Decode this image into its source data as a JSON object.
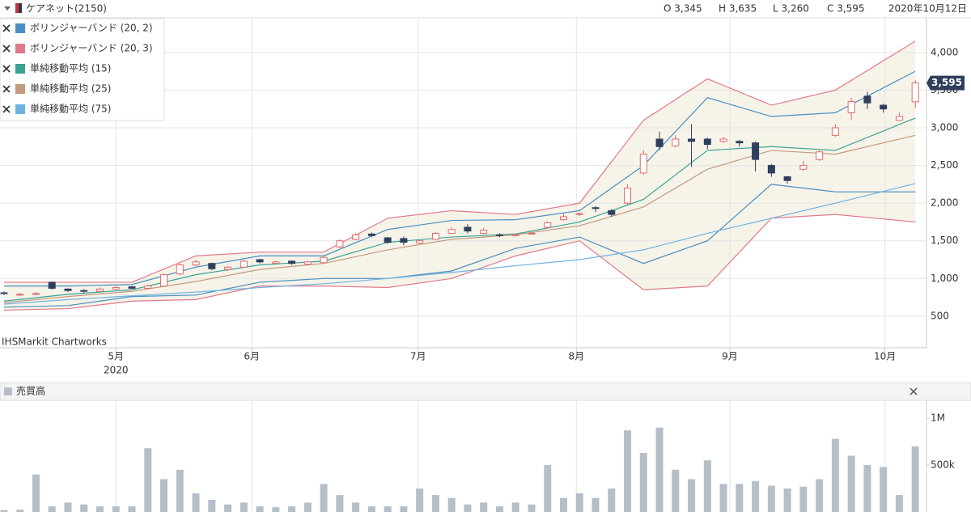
{
  "header": {
    "title": "ケアネット(2150)",
    "open": "O 3,345",
    "high": "H 3,635",
    "low": "L 3,260",
    "close": "C 3,595",
    "date": "2020年10月12日"
  },
  "chart_data": [
    {
      "type": "candlestick",
      "watermark": "IHSMarkit Chartworks",
      "year_label": "2020",
      "last_price_label": "3,595",
      "up_color": "#e06a6a",
      "down_color": "#2f3e5c",
      "grid": true,
      "xlim": [
        -0.25,
        57.7
      ],
      "ylim": [
        80,
        4460
      ],
      "xticks": [
        {
          "value": 7,
          "label": "5月"
        },
        {
          "value": 15.5,
          "label": "6月"
        },
        {
          "value": 25.9,
          "label": "7月"
        },
        {
          "value": 35.8,
          "label": "8月"
        },
        {
          "value": 45.4,
          "label": "9月"
        },
        {
          "value": 55.1,
          "label": "10月"
        }
      ],
      "yticks": [
        500,
        {
          "value": 1000,
          "label": "1,000"
        },
        {
          "value": 1500,
          "label": "1,500"
        },
        {
          "value": 2000,
          "label": "2,000"
        },
        {
          "value": 2500,
          "label": "2,500"
        },
        {
          "value": 3000,
          "label": "3,000"
        },
        {
          "value": 3500,
          "label": "3,500"
        },
        {
          "value": 4000,
          "label": "4,000"
        }
      ],
      "x": [
        0,
        1,
        2,
        3,
        4,
        5,
        6,
        7,
        8,
        9,
        10,
        11,
        12,
        13,
        14,
        15,
        16,
        17,
        18,
        19,
        20,
        21,
        22,
        23,
        24,
        25,
        26,
        27,
        28,
        29,
        30,
        31,
        32,
        33,
        34,
        35,
        36,
        37,
        38,
        39,
        40,
        41,
        42,
        43,
        44,
        45,
        46,
        47,
        48,
        49,
        50,
        51,
        52,
        53,
        54,
        55,
        56,
        57
      ],
      "open": [
        810,
        780,
        790,
        950,
        860,
        840,
        830,
        860,
        890,
        870,
        900,
        1060,
        1180,
        1200,
        1120,
        1150,
        1250,
        1200,
        1230,
        1190,
        1210,
        1420,
        1520,
        1590,
        1540,
        1530,
        1470,
        1520,
        1600,
        1680,
        1600,
        1580,
        1570,
        1590,
        1680,
        1780,
        1850,
        1940,
        1900,
        2000,
        2400,
        2850,
        2760,
        2850,
        2850,
        2820,
        2820,
        2800,
        2500,
        2350,
        2450,
        2580,
        2900,
        3200,
        3420,
        3300,
        3100,
        3345
      ],
      "high": [
        830,
        810,
        820,
        960,
        870,
        860,
        880,
        900,
        900,
        920,
        1070,
        1200,
        1250,
        1210,
        1170,
        1250,
        1260,
        1240,
        1240,
        1240,
        1300,
        1520,
        1600,
        1610,
        1550,
        1560,
        1520,
        1620,
        1680,
        1720,
        1670,
        1600,
        1600,
        1620,
        1760,
        1860,
        1880,
        1960,
        1920,
        2250,
        2700,
        2950,
        2900,
        3050,
        2870,
        2880,
        2840,
        2820,
        2520,
        2360,
        2560,
        2720,
        3050,
        3400,
        3480,
        3320,
        3200,
        3635
      ],
      "low": [
        780,
        770,
        780,
        850,
        820,
        810,
        820,
        850,
        860,
        860,
        890,
        1040,
        1160,
        1110,
        1100,
        1140,
        1200,
        1190,
        1180,
        1180,
        1200,
        1400,
        1510,
        1550,
        1460,
        1440,
        1460,
        1510,
        1590,
        1600,
        1590,
        1550,
        1560,
        1580,
        1660,
        1770,
        1830,
        1880,
        1820,
        1980,
        2380,
        2700,
        2740,
        2480,
        2720,
        2800,
        2750,
        2420,
        2350,
        2260,
        2430,
        2560,
        2880,
        3100,
        3250,
        3200,
        3100,
        3260
      ],
      "close": [
        800,
        790,
        800,
        870,
        840,
        830,
        860,
        880,
        870,
        900,
        1050,
        1180,
        1220,
        1130,
        1150,
        1230,
        1220,
        1220,
        1200,
        1220,
        1280,
        1500,
        1580,
        1570,
        1480,
        1480,
        1500,
        1600,
        1650,
        1630,
        1640,
        1570,
        1580,
        1600,
        1740,
        1820,
        1860,
        1930,
        1850,
        2200,
        2650,
        2750,
        2850,
        2820,
        2780,
        2850,
        2800,
        2580,
        2400,
        2300,
        2500,
        2680,
        3000,
        3350,
        3330,
        3250,
        3150,
        3595
      ],
      "series": [
        {
          "name": "ボリンジャーバンド (20, 2)",
          "color": "#4a8fc0",
          "x": [
            0,
            4,
            8,
            12,
            16,
            20,
            24,
            28,
            32,
            36,
            40,
            44,
            48,
            52,
            57
          ],
          "upper": [
            900,
            900,
            920,
            1150,
            1300,
            1300,
            1650,
            1770,
            1780,
            1900,
            2500,
            3400,
            3150,
            3200,
            3750
          ],
          "lower": [
            620,
            640,
            760,
            780,
            950,
            1000,
            1000,
            1100,
            1400,
            1550,
            1200,
            1500,
            2250,
            2150,
            2150
          ]
        },
        {
          "name": "ボリンジャーバンド (20, 3)",
          "color": "#e07a8a",
          "x": [
            0,
            4,
            8,
            12,
            16,
            20,
            24,
            28,
            32,
            36,
            40,
            44,
            48,
            52,
            57
          ],
          "upper": [
            950,
            950,
            950,
            1300,
            1350,
            1350,
            1800,
            1900,
            1850,
            2000,
            3100,
            3650,
            3300,
            3500,
            4150
          ],
          "lower": [
            580,
            600,
            700,
            720,
            900,
            900,
            880,
            1000,
            1300,
            1500,
            850,
            900,
            1800,
            1850,
            1750
          ]
        },
        {
          "name": "単純移動平均 (15)",
          "color": "#3aa394",
          "x": [
            0,
            4,
            8,
            12,
            16,
            20,
            24,
            28,
            32,
            36,
            40,
            44,
            48,
            52,
            57
          ],
          "values": [
            700,
            790,
            850,
            1050,
            1180,
            1230,
            1480,
            1550,
            1590,
            1750,
            2050,
            2700,
            2750,
            2700,
            3130
          ]
        },
        {
          "name": "単純移動平均 (25)",
          "color": "#c49a7e",
          "x": [
            0,
            4,
            8,
            12,
            16,
            20,
            24,
            28,
            32,
            36,
            40,
            44,
            48,
            52,
            57
          ],
          "values": [
            680,
            760,
            830,
            960,
            1120,
            1200,
            1380,
            1520,
            1580,
            1700,
            1950,
            2450,
            2700,
            2650,
            2900
          ]
        },
        {
          "name": "単純移動平均 (75)",
          "color": "#6fb3e0",
          "x": [
            0,
            4,
            8,
            12,
            16,
            20,
            24,
            28,
            32,
            36,
            40,
            44,
            48,
            52,
            57
          ],
          "values": [
            660,
            720,
            770,
            820,
            880,
            930,
            1000,
            1080,
            1170,
            1250,
            1380,
            1600,
            1800,
            2000,
            2260
          ]
        }
      ]
    },
    {
      "type": "bar",
      "title": "売買高",
      "color": "#b4bfca",
      "xlim": [
        -0.25,
        57.7
      ],
      "ylim": [
        0,
        1190000
      ],
      "yticks": [
        {
          "value": 500000,
          "label": "500k"
        },
        {
          "value": 1000000,
          "label": "1M"
        }
      ],
      "x": [
        0,
        1,
        2,
        3,
        4,
        5,
        6,
        7,
        8,
        9,
        10,
        11,
        12,
        13,
        14,
        15,
        16,
        17,
        18,
        19,
        20,
        21,
        22,
        23,
        24,
        25,
        26,
        27,
        28,
        29,
        30,
        31,
        32,
        33,
        34,
        35,
        36,
        37,
        38,
        39,
        40,
        41,
        42,
        43,
        44,
        45,
        46,
        47,
        48,
        49,
        50,
        51,
        52,
        53,
        54,
        55,
        56,
        57
      ],
      "values": [
        20000,
        25000,
        400000,
        60000,
        100000,
        80000,
        60000,
        60000,
        60000,
        680000,
        350000,
        450000,
        200000,
        130000,
        80000,
        100000,
        60000,
        50000,
        60000,
        100000,
        300000,
        180000,
        100000,
        60000,
        60000,
        60000,
        250000,
        180000,
        150000,
        80000,
        100000,
        60000,
        100000,
        80000,
        500000,
        150000,
        200000,
        150000,
        250000,
        870000,
        630000,
        900000,
        450000,
        350000,
        550000,
        300000,
        300000,
        330000,
        280000,
        250000,
        270000,
        350000,
        780000,
        600000,
        500000,
        480000,
        180000,
        700000
      ]
    }
  ]
}
